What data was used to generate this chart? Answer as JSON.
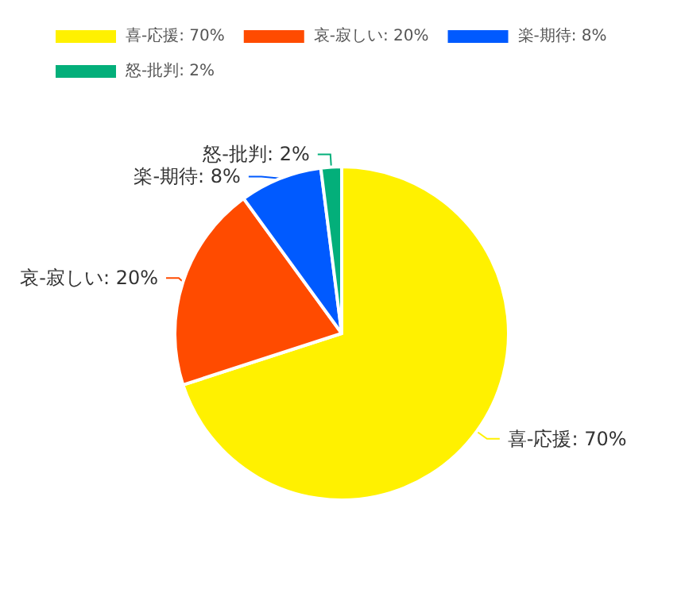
{
  "chart_data": {
    "type": "pie",
    "categories": [
      "喜-応援",
      "哀-寂しい",
      "楽-期待",
      "怒-批判"
    ],
    "values": [
      70,
      20,
      8,
      2
    ],
    "value_labels": [
      "70%",
      "20%",
      "8%",
      "2%"
    ],
    "colors": [
      "#fff100",
      "#ff4b00",
      "#005aff",
      "#03af7a"
    ],
    "legend": "top left"
  }
}
